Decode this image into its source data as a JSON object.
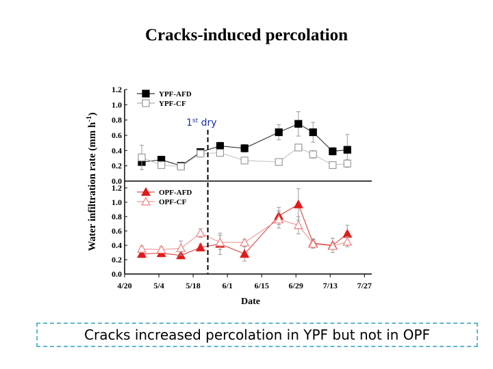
{
  "title": "Cracks-induced percolation",
  "caption": "Cracks increased percolation in YPF but not in OPF",
  "chart_data": [
    {
      "type": "line",
      "panel": "top",
      "ylim": [
        0,
        1.2
      ],
      "y_ticks": [
        "0.0",
        "0.2",
        "0.4",
        "0.6",
        "0.8",
        "1.0",
        "1.2"
      ],
      "series": [
        {
          "name": "YPF-AFD",
          "color": "#000000",
          "marker": "square",
          "fill": "filled",
          "x": [
            "4/27",
            "5/5",
            "5/13",
            "5/21",
            "5/29",
            "6/8",
            "6/22",
            "6/30",
            "7/6",
            "7/14",
            "7/20"
          ],
          "values": [
            0.25,
            0.28,
            0.2,
            0.38,
            0.46,
            0.43,
            0.64,
            0.75,
            0.64,
            0.39,
            0.41
          ],
          "errors": [
            0.04,
            0.03,
            0.02,
            0.04,
            0.05,
            0.05,
            0.1,
            0.16,
            0.13,
            0.05,
            0.2
          ]
        },
        {
          "name": "YPF-CF",
          "color": "#9a9a9a",
          "marker": "square",
          "fill": "open",
          "x": [
            "4/27",
            "5/5",
            "5/13",
            "5/21",
            "5/29",
            "6/8",
            "6/22",
            "6/30",
            "7/6",
            "7/14",
            "7/20"
          ],
          "values": [
            0.31,
            0.21,
            0.19,
            0.36,
            0.37,
            0.27,
            0.25,
            0.44,
            0.35,
            0.21,
            0.23
          ],
          "errors": [
            0.16,
            0.04,
            0.02,
            0.03,
            0.03,
            0.04,
            0.03,
            0.04,
            0.05,
            0.03,
            0.05
          ]
        }
      ]
    },
    {
      "type": "line",
      "panel": "bottom",
      "ylim": [
        0,
        1.2
      ],
      "y_ticks": [
        "0.0",
        "0.2",
        "0.4",
        "0.6",
        "0.8",
        "1.0",
        "1.2"
      ],
      "series": [
        {
          "name": "OPF-AFD",
          "color": "#e01b1b",
          "marker": "triangle",
          "fill": "filled",
          "x": [
            "4/27",
            "5/5",
            "5/13",
            "5/21",
            "5/29",
            "6/8",
            "6/22",
            "6/30",
            "7/6",
            "7/14",
            "7/20"
          ],
          "values": [
            0.28,
            0.29,
            0.26,
            0.37,
            0.42,
            0.28,
            0.81,
            0.97,
            0.43,
            0.4,
            0.56
          ],
          "errors": [
            0.05,
            0.05,
            0.05,
            0.05,
            0.15,
            0.1,
            0.12,
            0.22,
            0.06,
            0.1,
            0.12
          ]
        },
        {
          "name": "OPF-CF",
          "color": "#f07e7e",
          "marker": "triangle",
          "fill": "open",
          "x": [
            "4/27",
            "5/5",
            "5/13",
            "5/21",
            "5/29",
            "6/8",
            "6/22",
            "6/30",
            "7/6",
            "7/14",
            "7/20"
          ],
          "values": [
            0.35,
            0.34,
            0.36,
            0.57,
            0.44,
            0.44,
            0.76,
            0.68,
            0.42,
            0.39,
            0.45
          ],
          "errors": [
            0.04,
            0.04,
            0.1,
            0.06,
            0.1,
            0.04,
            0.12,
            0.12,
            0.06,
            0.05,
            0.07
          ]
        }
      ]
    }
  ],
  "x_ticks": [
    "4/20",
    "5/4",
    "5/18",
    "6/1",
    "6/15",
    "6/29",
    "7/13",
    "7/27"
  ],
  "xlabel": "Date",
  "ylabel_main": "Water infiltration rate (mm h",
  "ylabel_sup": "-1",
  "ylabel_close": ")",
  "annotation": {
    "text_main": "1",
    "text_sup": "st",
    "text_rest": " dry",
    "date": "5/24"
  }
}
